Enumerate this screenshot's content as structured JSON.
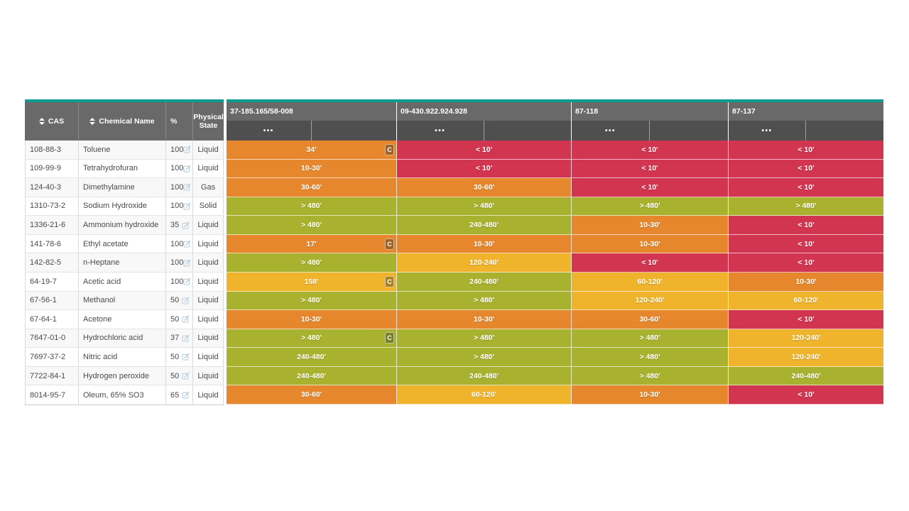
{
  "colors": {
    "teal_accent": "#0E9C90",
    "header_gray": "#696969",
    "subheader_gray": "#4F4F4F",
    "rating_green": "#A8B22E",
    "rating_yellow": "#EFB42C",
    "rating_orange": "#E6872D",
    "rating_red": "#D23550"
  },
  "left_table": {
    "headers": {
      "cas": "CAS",
      "chemical_name": "Chemical Name",
      "percent": "%",
      "physical_state": "Physical State"
    }
  },
  "products": [
    {
      "name": "37-185.165/58-008",
      "menu": "•••"
    },
    {
      "name": "09-430.922.924.928",
      "menu": "•••"
    },
    {
      "name": "87-118",
      "menu": "•••"
    },
    {
      "name": "87-137",
      "menu": "•••"
    }
  ],
  "rows": [
    {
      "cas": "108-88-3",
      "name": "Toluene",
      "percent": "100",
      "state": "Liquid",
      "results": [
        {
          "label": "34'",
          "level": "orange",
          "badge": "C"
        },
        {
          "label": "< 10'",
          "level": "red",
          "badge": ""
        },
        {
          "label": "< 10'",
          "level": "red",
          "badge": ""
        },
        {
          "label": "< 10'",
          "level": "red",
          "badge": ""
        }
      ]
    },
    {
      "cas": "109-99-9",
      "name": "Tetrahydrofuran",
      "percent": "100",
      "state": "Liquid",
      "results": [
        {
          "label": "10-30'",
          "level": "orange",
          "badge": ""
        },
        {
          "label": "< 10'",
          "level": "red",
          "badge": ""
        },
        {
          "label": "< 10'",
          "level": "red",
          "badge": ""
        },
        {
          "label": "< 10'",
          "level": "red",
          "badge": ""
        }
      ]
    },
    {
      "cas": "124-40-3",
      "name": "Dimethylamine",
      "percent": "100",
      "state": "Gas",
      "results": [
        {
          "label": "30-60'",
          "level": "orange",
          "badge": ""
        },
        {
          "label": "30-60'",
          "level": "orange",
          "badge": ""
        },
        {
          "label": "< 10'",
          "level": "red",
          "badge": ""
        },
        {
          "label": "< 10'",
          "level": "red",
          "badge": ""
        }
      ]
    },
    {
      "cas": "1310-73-2",
      "name": "Sodium Hydroxide",
      "percent": "100",
      "state": "Solid",
      "results": [
        {
          "label": "> 480'",
          "level": "green",
          "badge": ""
        },
        {
          "label": "> 480'",
          "level": "green",
          "badge": ""
        },
        {
          "label": "> 480'",
          "level": "green",
          "badge": ""
        },
        {
          "label": "> 480'",
          "level": "green",
          "badge": ""
        }
      ]
    },
    {
      "cas": "1336-21-6",
      "name": "Ammonium hydroxide",
      "percent": "35",
      "state": "Liquid",
      "results": [
        {
          "label": "> 480'",
          "level": "green",
          "badge": ""
        },
        {
          "label": "240-480'",
          "level": "green",
          "badge": ""
        },
        {
          "label": "10-30'",
          "level": "orange",
          "badge": ""
        },
        {
          "label": "< 10'",
          "level": "red",
          "badge": ""
        }
      ]
    },
    {
      "cas": "141-78-6",
      "name": "Ethyl acetate",
      "percent": "100",
      "state": "Liquid",
      "results": [
        {
          "label": "17'",
          "level": "orange",
          "badge": "C"
        },
        {
          "label": "10-30'",
          "level": "orange",
          "badge": ""
        },
        {
          "label": "10-30'",
          "level": "orange",
          "badge": ""
        },
        {
          "label": "< 10'",
          "level": "red",
          "badge": ""
        }
      ]
    },
    {
      "cas": "142-82-5",
      "name": "n-Heptane",
      "percent": "100",
      "state": "Liquid",
      "results": [
        {
          "label": "> 480'",
          "level": "green",
          "badge": ""
        },
        {
          "label": "120-240'",
          "level": "yellow",
          "badge": ""
        },
        {
          "label": "< 10'",
          "level": "red",
          "badge": ""
        },
        {
          "label": "< 10'",
          "level": "red",
          "badge": ""
        }
      ]
    },
    {
      "cas": "64-19-7",
      "name": "Acetic acid",
      "percent": "100",
      "state": "Liquid",
      "results": [
        {
          "label": "158'",
          "level": "yellow",
          "badge": "C"
        },
        {
          "label": "240-480'",
          "level": "green",
          "badge": ""
        },
        {
          "label": "60-120'",
          "level": "yellow",
          "badge": ""
        },
        {
          "label": "10-30'",
          "level": "orange",
          "badge": ""
        }
      ]
    },
    {
      "cas": "67-56-1",
      "name": "Methanol",
      "percent": "50",
      "state": "Liquid",
      "results": [
        {
          "label": "> 480'",
          "level": "green",
          "badge": ""
        },
        {
          "label": "> 480'",
          "level": "green",
          "badge": ""
        },
        {
          "label": "120-240'",
          "level": "yellow",
          "badge": ""
        },
        {
          "label": "60-120'",
          "level": "yellow",
          "badge": ""
        }
      ]
    },
    {
      "cas": "67-64-1",
      "name": "Acetone",
      "percent": "50",
      "state": "Liquid",
      "results": [
        {
          "label": "10-30'",
          "level": "orange",
          "badge": ""
        },
        {
          "label": "10-30'",
          "level": "orange",
          "badge": ""
        },
        {
          "label": "30-60'",
          "level": "orange",
          "badge": ""
        },
        {
          "label": "< 10'",
          "level": "red",
          "badge": ""
        }
      ]
    },
    {
      "cas": "7647-01-0",
      "name": "Hydrochloric acid",
      "percent": "37",
      "state": "Liquid",
      "results": [
        {
          "label": "> 480'",
          "level": "green",
          "badge": "C"
        },
        {
          "label": "> 480'",
          "level": "green",
          "badge": ""
        },
        {
          "label": "> 480'",
          "level": "green",
          "badge": ""
        },
        {
          "label": "120-240'",
          "level": "yellow",
          "badge": ""
        }
      ]
    },
    {
      "cas": "7697-37-2",
      "name": "Nitric acid",
      "percent": "50",
      "state": "Liquid",
      "results": [
        {
          "label": "240-480'",
          "level": "green",
          "badge": ""
        },
        {
          "label": "> 480'",
          "level": "green",
          "badge": ""
        },
        {
          "label": "> 480'",
          "level": "green",
          "badge": ""
        },
        {
          "label": "120-240'",
          "level": "yellow",
          "badge": ""
        }
      ]
    },
    {
      "cas": "7722-84-1",
      "name": "Hydrogen peroxide",
      "percent": "50",
      "state": "Liquid",
      "results": [
        {
          "label": "240-480'",
          "level": "green",
          "badge": ""
        },
        {
          "label": "240-480'",
          "level": "green",
          "badge": ""
        },
        {
          "label": "> 480'",
          "level": "green",
          "badge": ""
        },
        {
          "label": "240-480'",
          "level": "green",
          "badge": ""
        }
      ]
    },
    {
      "cas": "8014-95-7",
      "name": "Oleum, 65% SO3",
      "percent": "65",
      "state": "Liquid",
      "results": [
        {
          "label": "30-60'",
          "level": "orange",
          "badge": ""
        },
        {
          "label": "60-120'",
          "level": "yellow",
          "badge": ""
        },
        {
          "label": "10-30'",
          "level": "orange",
          "badge": ""
        },
        {
          "label": "< 10'",
          "level": "red",
          "badge": ""
        }
      ]
    }
  ]
}
